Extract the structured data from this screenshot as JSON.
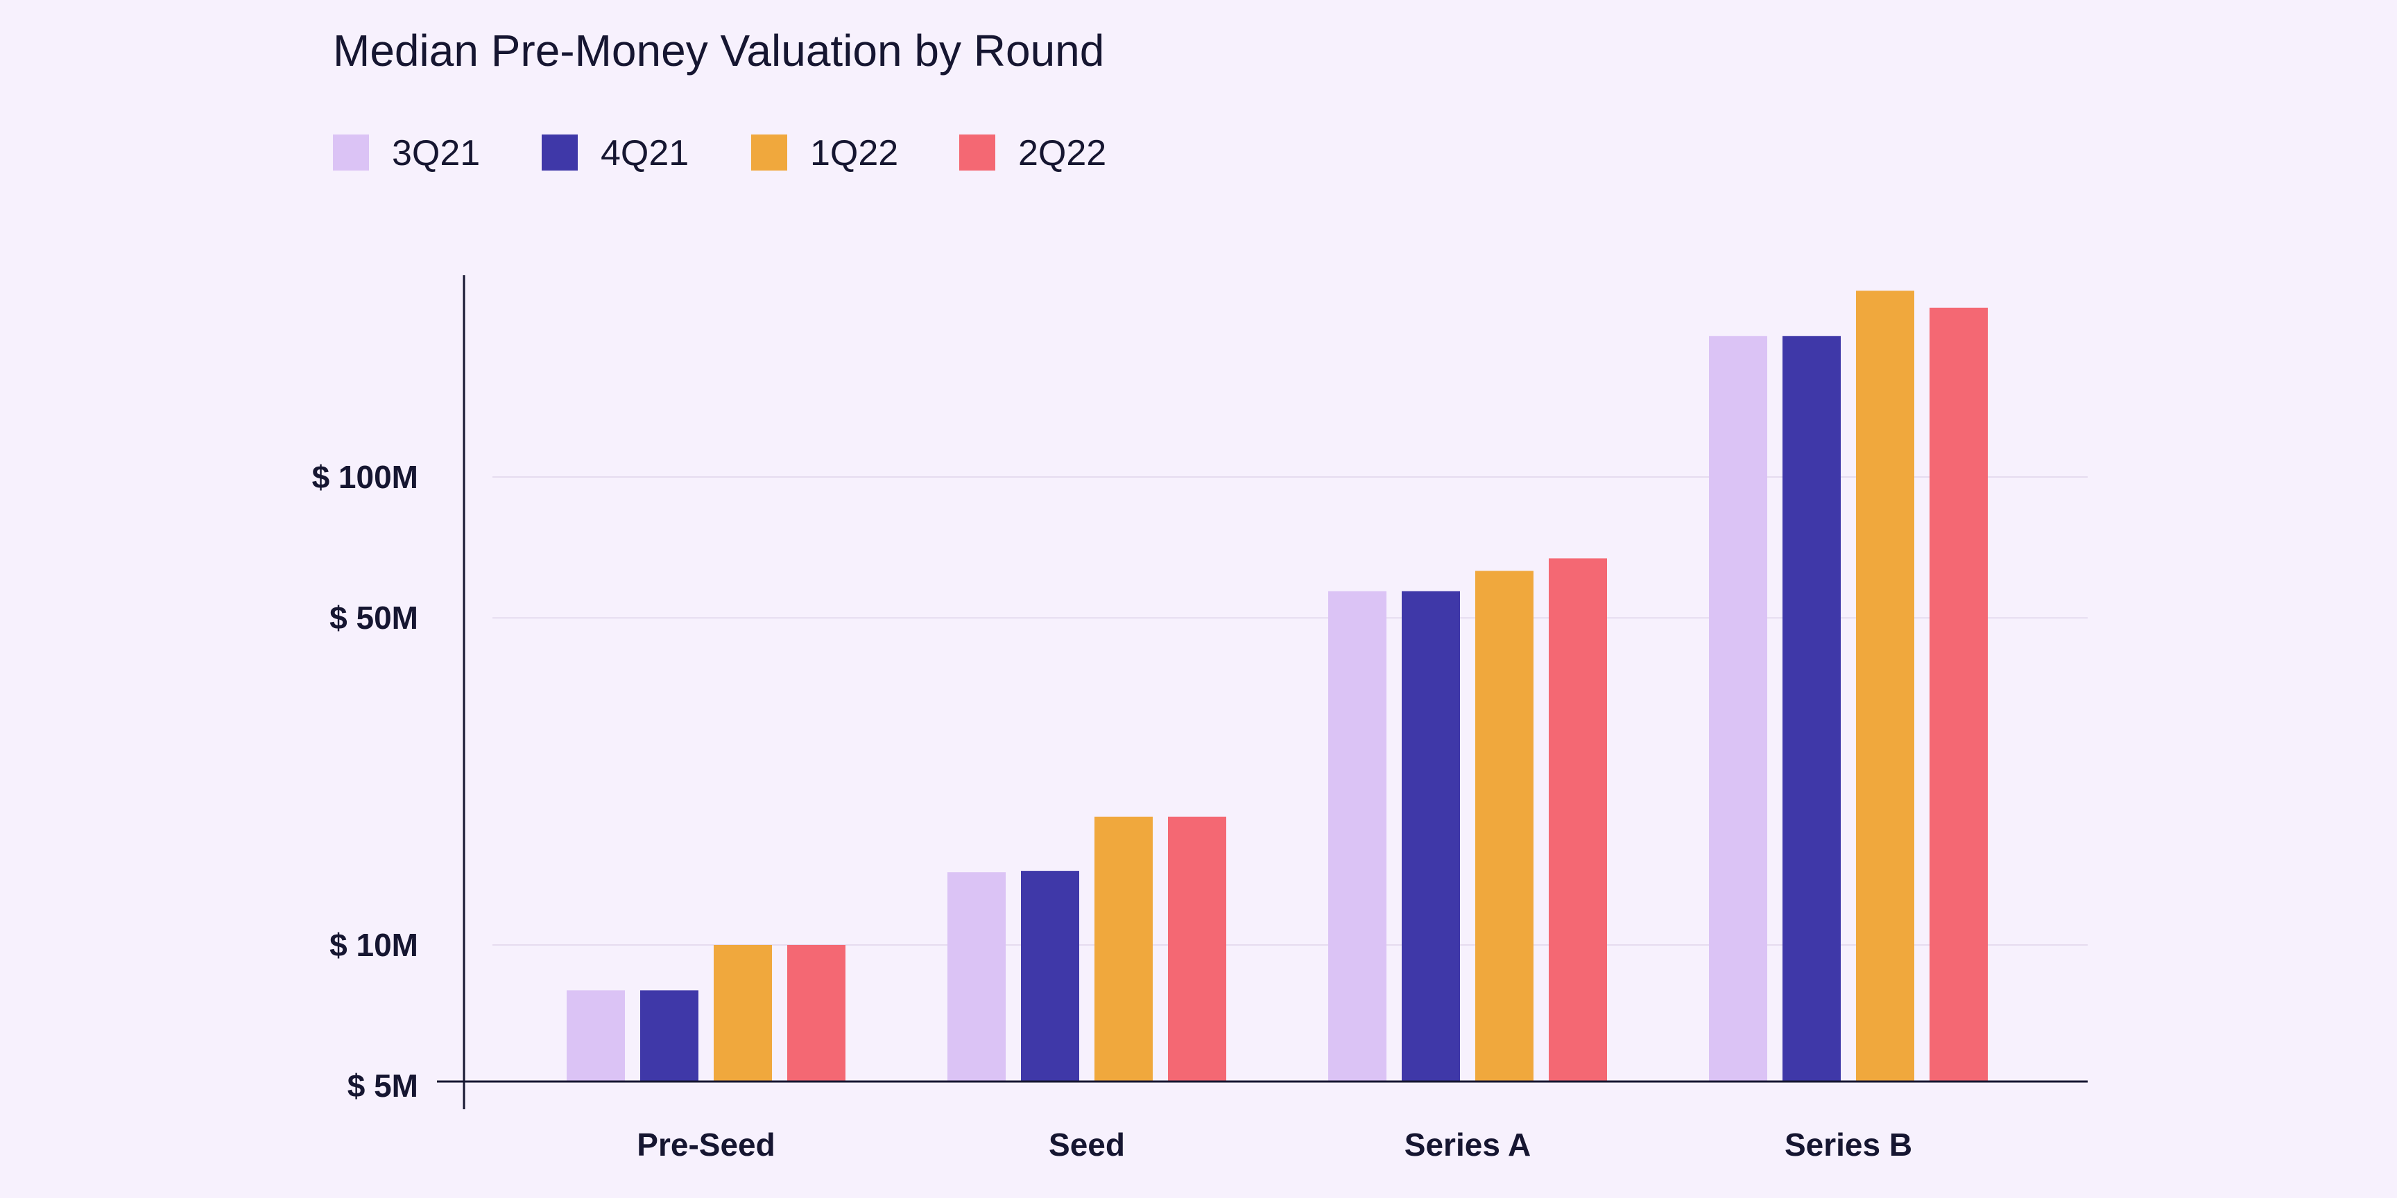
{
  "chart_data": {
    "type": "bar",
    "title": "Median Pre-Money Valuation by Round",
    "xlabel": "",
    "ylabel": "",
    "y_scale": "log",
    "ylim": [
      5,
      240
    ],
    "y_ticks": [
      {
        "value": 5,
        "label": "$ 5M"
      },
      {
        "value": 10,
        "label": "$ 10M"
      },
      {
        "value": 50,
        "label": "$ 50M"
      },
      {
        "value": 100,
        "label": "$ 100M"
      }
    ],
    "grid": true,
    "legend_position": "top-left",
    "categories": [
      "Pre-Seed",
      "Seed",
      "Series A",
      "Series B"
    ],
    "series": [
      {
        "name": "3Q21",
        "color": "#dbc3f5",
        "values": [
          8,
          14.3,
          57,
          200
        ]
      },
      {
        "name": "4Q21",
        "color": "#3f38a8",
        "values": [
          8,
          14.4,
          57,
          200
        ]
      },
      {
        "name": "1Q22",
        "color": "#f0a83d",
        "values": [
          10,
          18.8,
          63,
          250
        ]
      },
      {
        "name": "2Q22",
        "color": "#f46873",
        "values": [
          10,
          18.8,
          67,
          230
        ]
      }
    ]
  }
}
